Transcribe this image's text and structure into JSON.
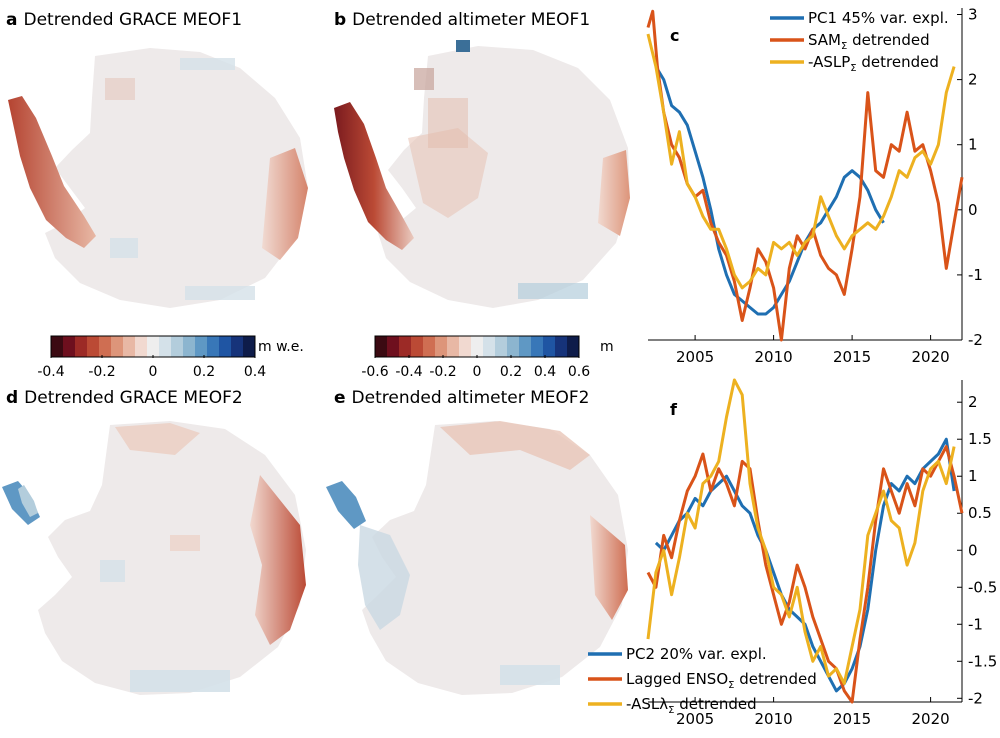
{
  "panels": {
    "a": {
      "letter": "a",
      "title": "Detrended GRACE MEOF1"
    },
    "b": {
      "letter": "b",
      "title": "Detrended altimeter MEOF1"
    },
    "d": {
      "letter": "d",
      "title": "Detrended GRACE MEOF2"
    },
    "e": {
      "letter": "e",
      "title": "Detrended altimeter MEOF2"
    }
  },
  "colorbars": {
    "grace": {
      "unit": "m w.e.",
      "ticks": [
        "-0.4",
        "-0.2",
        "0",
        "0.2",
        "0.4"
      ]
    },
    "altimeter": {
      "unit": "m",
      "ticks": [
        "-0.6",
        "-0.4",
        "-0.2",
        "0",
        "0.2",
        "0.4",
        "0.6"
      ]
    },
    "colors": [
      "#3b0a12",
      "#6e0f1e",
      "#9c2a26",
      "#bb4a35",
      "#cf6e52",
      "#dd957a",
      "#e8b8a5",
      "#f1d9d0",
      "#eeeeee",
      "#d4e1e9",
      "#b3cddc",
      "#8cb5cf",
      "#5f98c4",
      "#3877b8",
      "#1f55a3",
      "#16337a",
      "#0e1c4a"
    ]
  },
  "chart_data": [
    {
      "type": "line",
      "panel": "c",
      "title": "c",
      "xlabel": "",
      "ylabel": "",
      "xlim": [
        2002,
        2022
      ],
      "ylim": [
        -2,
        3.1
      ],
      "xticks": [
        "2005",
        "2010",
        "2015",
        "2020"
      ],
      "yticks": [
        "-2",
        "-1",
        "0",
        "1",
        "2",
        "3"
      ],
      "yaxis_side": "right",
      "legend_position": "top-right",
      "series": [
        {
          "name": "PC1 45% var. expl.",
          "label_main": "PC1 45% var. expl.",
          "label_sub": "",
          "label_tail": "",
          "color": "#1f6fb2",
          "x": [
            2002.5,
            2003,
            2003.5,
            2004,
            2004.5,
            2005,
            2005.5,
            2006,
            2006.5,
            2007,
            2007.5,
            2008,
            2008.5,
            2009,
            2009.5,
            2010,
            2010.5,
            2011,
            2011.5,
            2012,
            2012.5,
            2013,
            2013.5,
            2014,
            2014.5,
            2015,
            2015.5,
            2016,
            2016.5,
            2017
          ],
          "y": [
            2.2,
            2.0,
            1.6,
            1.5,
            1.3,
            0.9,
            0.5,
            0.0,
            -0.6,
            -1.0,
            -1.3,
            -1.4,
            -1.5,
            -1.6,
            -1.6,
            -1.5,
            -1.3,
            -1.1,
            -0.8,
            -0.5,
            -0.3,
            -0.2,
            0.0,
            0.2,
            0.5,
            0.6,
            0.5,
            0.3,
            0.0,
            -0.2
          ]
        },
        {
          "name": "SAM detrended",
          "label_main": "SAM",
          "label_sub": "Σ",
          "label_tail": " detrended",
          "color": "#d95319",
          "x": [
            2002,
            2002.3,
            2002.6,
            2003,
            2003.5,
            2004,
            2004.5,
            2005,
            2005.5,
            2006,
            2006.5,
            2007,
            2007.5,
            2008,
            2008.5,
            2009,
            2009.5,
            2010,
            2010.5,
            2011,
            2011.5,
            2012,
            2012.5,
            2013,
            2013.5,
            2014,
            2014.5,
            2015,
            2015.5,
            2016,
            2016.5,
            2017,
            2017.5,
            2018,
            2018.5,
            2019,
            2019.5,
            2020,
            2020.5,
            2021,
            2021.5,
            2022
          ],
          "y": [
            2.8,
            3.05,
            2.2,
            1.5,
            1.0,
            0.8,
            0.4,
            0.2,
            0.3,
            -0.2,
            -0.5,
            -0.7,
            -1.1,
            -1.7,
            -1.2,
            -0.6,
            -0.8,
            -1.2,
            -2.0,
            -0.9,
            -0.4,
            -0.6,
            -0.3,
            -0.7,
            -0.9,
            -1.0,
            -1.3,
            -0.6,
            0.2,
            1.8,
            0.6,
            0.5,
            1.0,
            0.9,
            1.5,
            0.9,
            1.0,
            0.6,
            0.1,
            -0.9,
            -0.2,
            0.5
          ]
        },
        {
          "name": "-ASLP detrended",
          "label_main": "-ASLP",
          "label_sub": "Σ",
          "label_tail": " detrended",
          "color": "#edb120",
          "x": [
            2002,
            2002.5,
            2003,
            2003.5,
            2004,
            2004.5,
            2005,
            2005.5,
            2006,
            2006.5,
            2007,
            2007.5,
            2008,
            2008.5,
            2009,
            2009.5,
            2010,
            2010.5,
            2011,
            2011.5,
            2012,
            2012.5,
            2013,
            2013.5,
            2014,
            2014.5,
            2015,
            2015.5,
            2016,
            2016.5,
            2017,
            2017.5,
            2018,
            2018.5,
            2019,
            2019.5,
            2020,
            2020.5,
            2021,
            2021.5
          ],
          "y": [
            2.7,
            2.2,
            1.5,
            0.7,
            1.2,
            0.4,
            0.2,
            -0.1,
            -0.3,
            -0.3,
            -0.6,
            -1.0,
            -1.2,
            -1.1,
            -0.9,
            -1.0,
            -0.5,
            -0.6,
            -0.5,
            -0.7,
            -0.5,
            -0.4,
            0.2,
            -0.1,
            -0.4,
            -0.6,
            -0.4,
            -0.3,
            -0.2,
            -0.3,
            -0.1,
            0.2,
            0.6,
            0.5,
            0.8,
            0.9,
            0.7,
            1.0,
            1.8,
            2.2
          ]
        }
      ]
    },
    {
      "type": "line",
      "panel": "f",
      "title": "f",
      "xlabel": "",
      "ylabel": "",
      "xlim": [
        2002,
        2022
      ],
      "ylim": [
        -2.05,
        2.3
      ],
      "xticks": [
        "2005",
        "2010",
        "2015",
        "2020"
      ],
      "yticks": [
        "-2",
        "-1.5",
        "-1",
        "-0.5",
        "0",
        "0.5",
        "1",
        "1.5",
        "2"
      ],
      "yaxis_side": "right",
      "legend_position": "bottom-left",
      "series": [
        {
          "name": "PC2 20% var. expl.",
          "label_main": "PC2 20% var. expl.",
          "label_sub": "",
          "label_tail": "",
          "color": "#1f6fb2",
          "x": [
            2002.5,
            2003,
            2003.5,
            2004,
            2004.5,
            2005,
            2005.5,
            2006,
            2006.5,
            2007,
            2007.5,
            2008,
            2008.5,
            2009,
            2009.5,
            2010,
            2010.5,
            2011,
            2011.5,
            2012,
            2012.5,
            2013,
            2013.5,
            2014,
            2014.5,
            2015,
            2015.5,
            2016,
            2016.5,
            2017,
            2017.5,
            2018,
            2018.5,
            2019,
            2019.5,
            2020,
            2020.5,
            2021,
            2021.5
          ],
          "y": [
            0.1,
            0.0,
            0.2,
            0.4,
            0.5,
            0.7,
            0.6,
            0.8,
            0.9,
            1.0,
            0.8,
            0.6,
            0.5,
            0.2,
            0.0,
            -0.3,
            -0.6,
            -0.8,
            -0.9,
            -1.0,
            -1.3,
            -1.5,
            -1.7,
            -1.9,
            -1.8,
            -1.6,
            -1.3,
            -0.8,
            0.0,
            0.6,
            0.9,
            0.8,
            1.0,
            0.9,
            1.1,
            1.2,
            1.3,
            1.5,
            0.8
          ]
        },
        {
          "name": "Lagged ENSO detrended",
          "label_main": "Lagged ENSO",
          "label_sub": "Σ",
          "label_tail": " detrended",
          "color": "#d95319",
          "x": [
            2002,
            2002.5,
            2003,
            2003.5,
            2004,
            2004.5,
            2005,
            2005.5,
            2006,
            2006.5,
            2007,
            2007.5,
            2008,
            2008.5,
            2009,
            2009.5,
            2010,
            2010.5,
            2011,
            2011.5,
            2012,
            2012.5,
            2013,
            2013.5,
            2014,
            2014.5,
            2015,
            2015.5,
            2016,
            2016.5,
            2017,
            2017.5,
            2018,
            2018.5,
            2019,
            2019.5,
            2020,
            2020.5,
            2021,
            2021.5,
            2022
          ],
          "y": [
            -0.3,
            -0.5,
            0.2,
            -0.1,
            0.4,
            0.8,
            1.0,
            1.3,
            0.8,
            1.1,
            0.9,
            0.6,
            1.2,
            1.1,
            0.4,
            -0.2,
            -0.6,
            -1.0,
            -0.7,
            -0.2,
            -0.5,
            -0.9,
            -1.2,
            -1.5,
            -1.6,
            -1.9,
            -2.05,
            -1.2,
            -0.5,
            0.4,
            1.1,
            0.8,
            0.5,
            0.9,
            0.6,
            1.1,
            1.0,
            1.2,
            1.4,
            1.0,
            0.5
          ]
        },
        {
          "name": "-ASLλ detrended",
          "label_main": "-ASLλ",
          "label_sub": "Σ",
          "label_tail": " detrended",
          "color": "#edb120",
          "x": [
            2002,
            2002.5,
            2003,
            2003.5,
            2004,
            2004.5,
            2005,
            2005.5,
            2006,
            2006.5,
            2007,
            2007.5,
            2008,
            2008.5,
            2009,
            2009.5,
            2010,
            2010.5,
            2011,
            2011.5,
            2012,
            2012.5,
            2013,
            2013.5,
            2014,
            2014.5,
            2015,
            2015.5,
            2016,
            2016.5,
            2017,
            2017.5,
            2018,
            2018.5,
            2019,
            2019.5,
            2020,
            2020.5,
            2021,
            2021.5
          ],
          "y": [
            -1.2,
            -0.3,
            0.0,
            -0.6,
            -0.1,
            0.5,
            0.3,
            0.9,
            1.0,
            1.2,
            1.8,
            2.3,
            2.1,
            0.9,
            0.3,
            0.0,
            -0.5,
            -0.6,
            -0.9,
            -0.5,
            -1.1,
            -1.5,
            -1.3,
            -1.7,
            -1.6,
            -1.8,
            -1.3,
            -0.8,
            0.2,
            0.5,
            0.8,
            0.4,
            0.3,
            -0.2,
            0.1,
            0.8,
            1.1,
            1.2,
            0.9,
            1.4
          ]
        }
      ]
    }
  ]
}
